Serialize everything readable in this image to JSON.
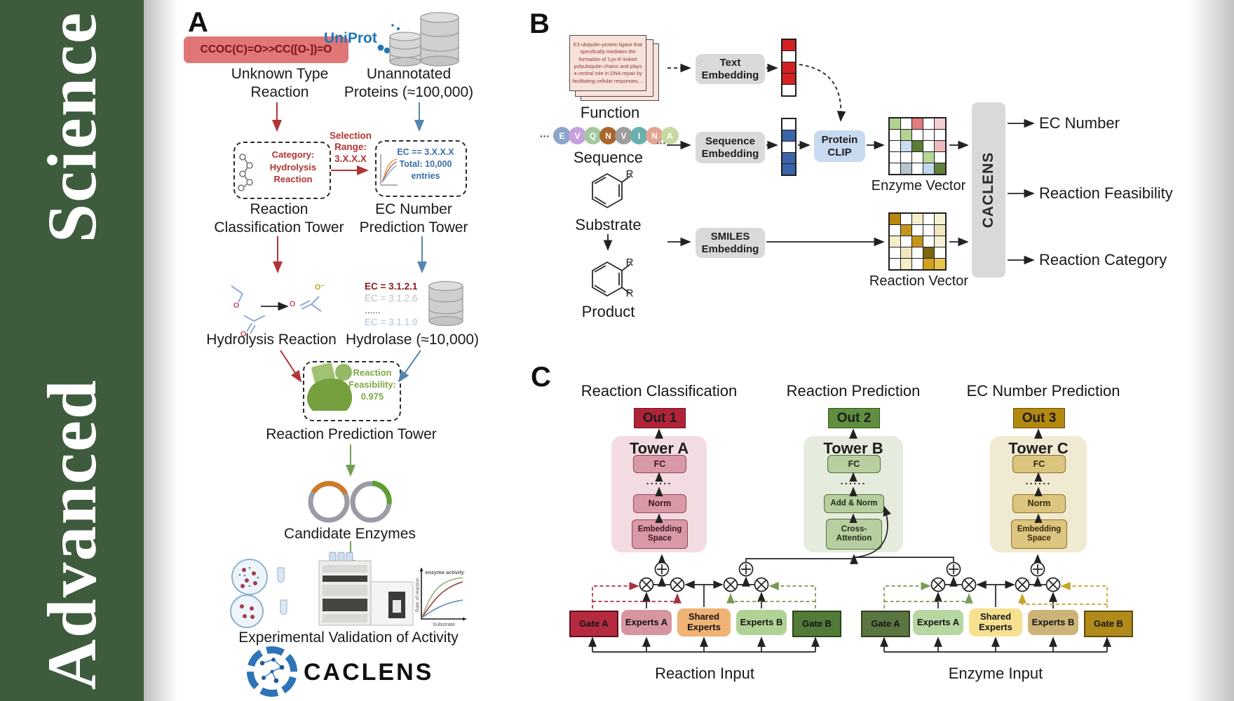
{
  "journal": {
    "title": "Advanced  Science",
    "band_color": "#3e5b3e"
  },
  "panelA": {
    "label": "A",
    "smiles": "CCOC(C)=O>>CC([O-])=O",
    "uniprot": "UniProt",
    "unknown_type": "Unknown Type\nReaction",
    "unannotated": "Unannotated\nProteins (≈100,000)",
    "selection": "Selection\nRange:\n3.X.X.X",
    "category": "Category:\nHydrolysis\nReaction",
    "ec_range": "EC == 3.X.X.X\nTotal: 10,000\nentries",
    "tower1": "Reaction\nClassification Tower",
    "tower2": "EC Number\nPrediction Tower",
    "hydrolysis": "Hydrolysis Reaction",
    "hydrolase": "Hydrolase (≈10,000)",
    "ec_list": [
      {
        "text": "EC = 3.1.2.1",
        "color": "#8b1a1a",
        "bold": true
      },
      {
        "text": "EC = 3.1.2.6",
        "color": "#c0c0c0"
      },
      {
        "text": "......",
        "color": "#444444"
      },
      {
        "text": "EC = 3.1.1.9",
        "color": "#a9c5e2"
      }
    ],
    "enzyme": "Enzyme",
    "feasibility": "Reaction\nFeasibility:\n0.975",
    "tower3": "Reaction Prediction Tower",
    "candidate": "Candidate Enzymes",
    "graph": {
      "curve_label": "enzyme activity",
      "ylabel": "Rate of reaction",
      "xlabel": "Substrate"
    },
    "validation": "Experimental Validation of Activity",
    "brand": "CACLENS",
    "atom_o": "O",
    "atom_o_minus": "O⁻"
  },
  "panelB": {
    "label": "B",
    "function_card": "E3 ubiquitin-protein ligase that specifically mediates the formation of 'Lys-6'-linked polyubiquitin chains and plays a central role in DNA repair by facilitating cellular responses....",
    "function": "Function",
    "ellipsis": "···",
    "sequence_circles": [
      {
        "letter": "E",
        "color": "#8ba6c9"
      },
      {
        "letter": "V",
        "color": "#c8a0df"
      },
      {
        "letter": "Q",
        "color": "#a3c9a0"
      },
      {
        "letter": "N",
        "color": "#aa652c"
      },
      {
        "letter": "V",
        "color": "#9d9d9d"
      },
      {
        "letter": "I",
        "color": "#68b1ae"
      },
      {
        "letter": "N",
        "color": "#e3a493"
      },
      {
        "letter": "A",
        "color": "#c7d8a3"
      }
    ],
    "sequence": "Sequence",
    "substrate": "Substrate",
    "product": "Product",
    "r_label": "R",
    "text_embedding": "Text\nEmbedding",
    "sequence_embedding": "Sequence\nEmbedding",
    "smiles_embedding": "SMILES\nEmbedding",
    "protein_clip": "Protein\nCLIP",
    "text_vector": [
      [
        "#d42121"
      ],
      [
        "#ffffff"
      ],
      [
        "#d42121"
      ],
      [
        "#d42121"
      ],
      [
        "#ffffff"
      ]
    ],
    "seq_vector": [
      [
        "#ffffff"
      ],
      [
        "#3c64a8"
      ],
      [
        "#ffffff"
      ],
      [
        "#3c64a8"
      ],
      [
        "#3c64a8"
      ]
    ],
    "enzyme_vector_cells": [
      [
        "#b2d491",
        "#ffffff",
        "#e27d7d",
        "#ffffff",
        "#f4cdd3"
      ],
      [
        "#ffffff",
        "#b2d491",
        "#ffffff",
        "#ffffff",
        "#ffffff"
      ],
      [
        "#ffffff",
        "#ccdcf0",
        "#5c7d35",
        "#ffffff",
        "#f0b9c0"
      ],
      [
        "#ffffff",
        "#ffffff",
        "#ffffff",
        "#b8d796",
        "#ffffff"
      ],
      [
        "#ffffff",
        "#b9c4cc",
        "#ffffff",
        "#c2d8ee",
        "#61803c"
      ]
    ],
    "reaction_vector_cells": [
      [
        "#b8860f",
        "#ffffff",
        "#f6eec9",
        "#ffffff",
        "#f8f1d4"
      ],
      [
        "#ffffff",
        "#c6951c",
        "#ffffff",
        "#ffffff",
        "#f3e8bd"
      ],
      [
        "#f6eec9",
        "#ffffff",
        "#c6951c",
        "#ffffff",
        "#f8f1d4"
      ],
      [
        "#ffffff",
        "#f3e8bd",
        "#ffffff",
        "#7c650e",
        "#ffffff"
      ],
      [
        "#ffffff",
        "#f6eec9",
        "#ffffff",
        "#cfa21f",
        "#e8c44e"
      ]
    ],
    "enzyme_vector": "Enzyme Vector",
    "reaction_vector": "Reaction Vector",
    "model_name": "CACLENS",
    "outputs": {
      "o1": "EC Number",
      "o2": "Reaction Feasibility",
      "o3": "Reaction Category"
    }
  },
  "panelC": {
    "label": "C",
    "titles": {
      "t1": "Reaction Classification",
      "t2": "Reaction Prediction",
      "t3": "EC Number Prediction"
    },
    "outs": {
      "o1": "Out 1",
      "o2": "Out 2",
      "o3": "Out 3"
    },
    "towerA": {
      "title": "Tower A",
      "fc": "FC",
      "dots": "......",
      "norm": "Norm",
      "emb": "Embedding\nSpace"
    },
    "towerB": {
      "title": "Tower B",
      "fc": "FC",
      "dots": "......",
      "addnorm": "Add & Norm",
      "cross": "Cross-\nAttention"
    },
    "towerC": {
      "title": "Tower C",
      "fc": "FC",
      "dots": "......",
      "norm": "Norm",
      "emb": "Embedding\nSpace"
    },
    "moe_left": {
      "gate_a": "Gate A",
      "experts_a": "Experts A",
      "shared": "Shared\nExperts",
      "experts_b": "Experts B",
      "gate_b": "Gate B",
      "input": "Reaction Input"
    },
    "moe_right": {
      "gate_a": "Gate A",
      "experts_a": "Experts A",
      "shared": "Shared\nExperts",
      "experts_b": "Experts B",
      "gate_b": "Gate B",
      "input": "Enzyme Input"
    }
  },
  "colors": {
    "accent_red": "#b13434",
    "accent_blue": "#5585ad",
    "accent_green": "#74a054"
  }
}
